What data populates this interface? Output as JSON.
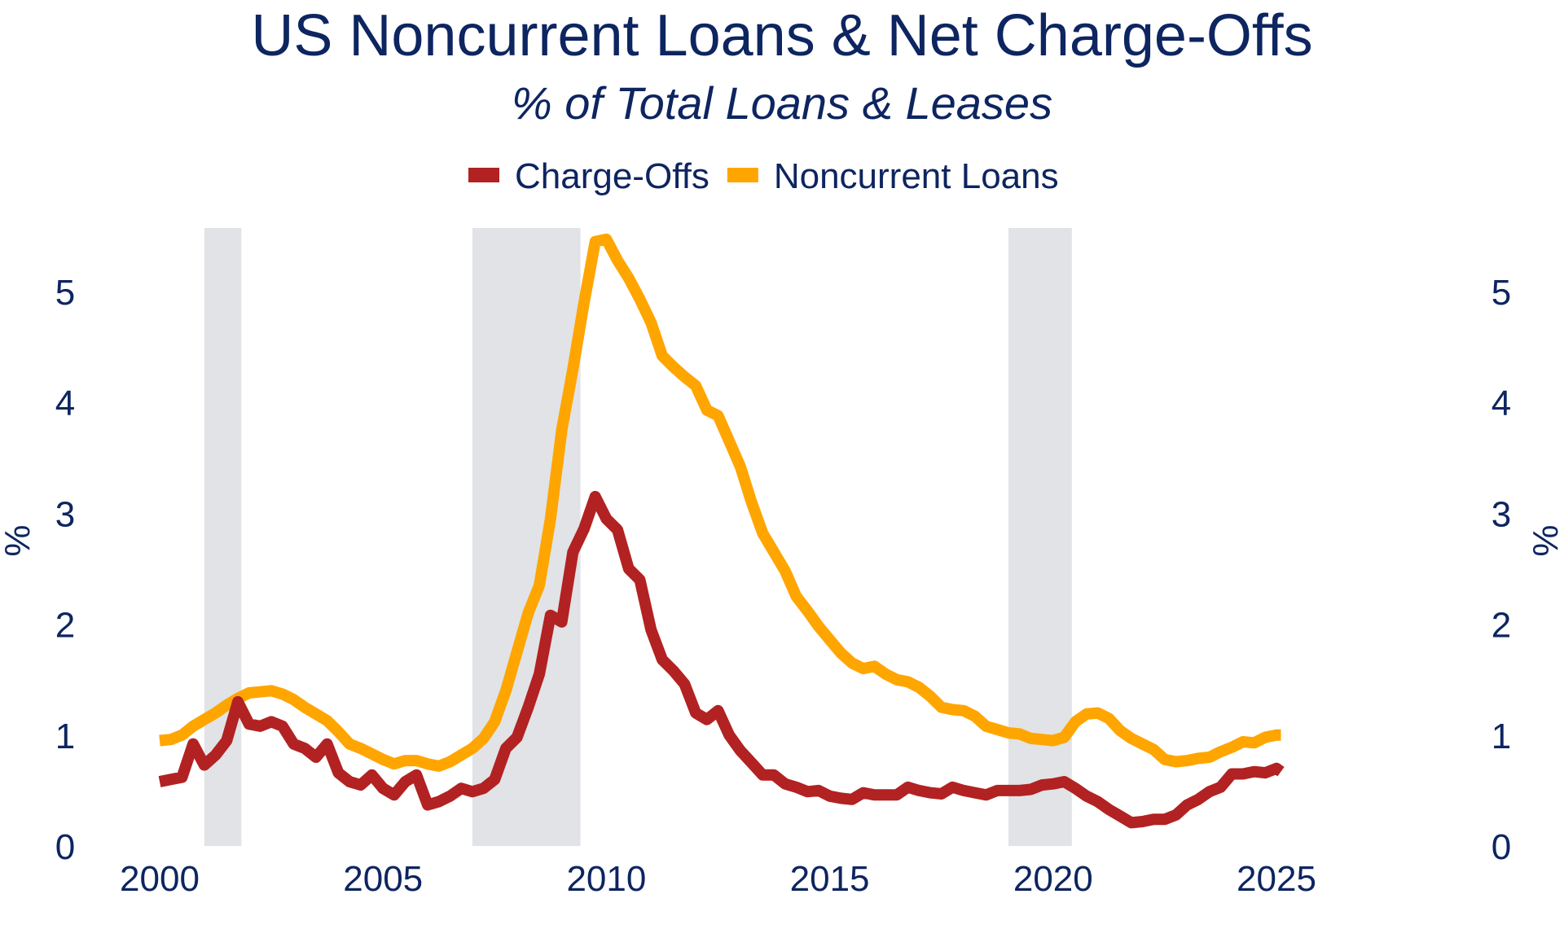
{
  "chart_data": {
    "type": "line",
    "title": "US Noncurrent Loans & Net Charge-Offs",
    "subtitle": "% of Total Loans & Leases",
    "ylabel_left": "%",
    "ylabel_right": "%",
    "xlim": [
      2000,
      2025
    ],
    "ylim": [
      0,
      5.8
    ],
    "x_ticks": [
      "2000",
      "2005",
      "2010",
      "2015",
      "2020",
      "2025"
    ],
    "y_ticks": [
      "0",
      "1",
      "2",
      "3",
      "4",
      "5"
    ],
    "legend_position": "top-center",
    "grid": false,
    "recessions": [
      [
        2001.0,
        2001.83
      ],
      [
        2007.0,
        2009.42
      ],
      [
        2019.0,
        2020.42
      ]
    ],
    "series": [
      {
        "name": "Charge-Offs",
        "color": "#b22222",
        "points": [
          [
            2000.0,
            0.58
          ],
          [
            2000.25,
            0.6
          ],
          [
            2000.5,
            0.62
          ],
          [
            2000.75,
            0.92
          ],
          [
            2001.0,
            0.73
          ],
          [
            2001.25,
            0.82
          ],
          [
            2001.5,
            0.95
          ],
          [
            2001.75,
            1.3
          ],
          [
            2002.0,
            1.1
          ],
          [
            2002.25,
            1.08
          ],
          [
            2002.5,
            1.12
          ],
          [
            2002.75,
            1.08
          ],
          [
            2003.0,
            0.92
          ],
          [
            2003.25,
            0.88
          ],
          [
            2003.5,
            0.8
          ],
          [
            2003.75,
            0.92
          ],
          [
            2004.0,
            0.66
          ],
          [
            2004.25,
            0.58
          ],
          [
            2004.5,
            0.55
          ],
          [
            2004.75,
            0.64
          ],
          [
            2005.0,
            0.52
          ],
          [
            2005.25,
            0.46
          ],
          [
            2005.5,
            0.58
          ],
          [
            2005.75,
            0.64
          ],
          [
            2006.0,
            0.37
          ],
          [
            2006.25,
            0.4
          ],
          [
            2006.5,
            0.45
          ],
          [
            2006.75,
            0.52
          ],
          [
            2007.0,
            0.49
          ],
          [
            2007.25,
            0.52
          ],
          [
            2007.5,
            0.6
          ],
          [
            2007.75,
            0.88
          ],
          [
            2008.0,
            0.98
          ],
          [
            2008.25,
            1.25
          ],
          [
            2008.5,
            1.55
          ],
          [
            2008.75,
            2.08
          ],
          [
            2009.0,
            2.02
          ],
          [
            2009.25,
            2.65
          ],
          [
            2009.5,
            2.86
          ],
          [
            2009.75,
            3.15
          ],
          [
            2010.0,
            2.95
          ],
          [
            2010.25,
            2.85
          ],
          [
            2010.5,
            2.5
          ],
          [
            2010.75,
            2.4
          ],
          [
            2011.0,
            1.95
          ],
          [
            2011.25,
            1.68
          ],
          [
            2011.5,
            1.58
          ],
          [
            2011.75,
            1.46
          ],
          [
            2012.0,
            1.2
          ],
          [
            2012.25,
            1.14
          ],
          [
            2012.5,
            1.22
          ],
          [
            2012.75,
            1.0
          ],
          [
            2013.0,
            0.86
          ],
          [
            2013.25,
            0.75
          ],
          [
            2013.5,
            0.64
          ],
          [
            2013.75,
            0.64
          ],
          [
            2014.0,
            0.56
          ],
          [
            2014.25,
            0.53
          ],
          [
            2014.5,
            0.49
          ],
          [
            2014.75,
            0.5
          ],
          [
            2015.0,
            0.45
          ],
          [
            2015.25,
            0.43
          ],
          [
            2015.5,
            0.42
          ],
          [
            2015.75,
            0.48
          ],
          [
            2016.0,
            0.46
          ],
          [
            2016.25,
            0.46
          ],
          [
            2016.5,
            0.46
          ],
          [
            2016.75,
            0.53
          ],
          [
            2017.0,
            0.5
          ],
          [
            2017.25,
            0.48
          ],
          [
            2017.5,
            0.47
          ],
          [
            2017.75,
            0.53
          ],
          [
            2018.0,
            0.5
          ],
          [
            2018.25,
            0.48
          ],
          [
            2018.5,
            0.46
          ],
          [
            2018.75,
            0.5
          ],
          [
            2019.0,
            0.5
          ],
          [
            2019.25,
            0.5
          ],
          [
            2019.5,
            0.51
          ],
          [
            2019.75,
            0.55
          ],
          [
            2020.0,
            0.56
          ],
          [
            2020.25,
            0.58
          ],
          [
            2020.5,
            0.52
          ],
          [
            2020.75,
            0.45
          ],
          [
            2021.0,
            0.4
          ],
          [
            2021.25,
            0.33
          ],
          [
            2021.5,
            0.27
          ],
          [
            2021.75,
            0.21
          ],
          [
            2022.0,
            0.22
          ],
          [
            2022.25,
            0.24
          ],
          [
            2022.5,
            0.24
          ],
          [
            2022.75,
            0.28
          ],
          [
            2023.0,
            0.37
          ],
          [
            2023.25,
            0.42
          ],
          [
            2023.5,
            0.49
          ],
          [
            2023.75,
            0.53
          ],
          [
            2024.0,
            0.65
          ],
          [
            2024.25,
            0.65
          ],
          [
            2024.5,
            0.67
          ],
          [
            2024.75,
            0.66
          ],
          [
            2025.0,
            0.7
          ],
          [
            2025.1,
            0.67
          ]
        ]
      },
      {
        "name": "Noncurrent Loans",
        "color": "#ffa500",
        "points": [
          [
            2000.0,
            0.95
          ],
          [
            2000.25,
            0.96
          ],
          [
            2000.5,
            1.0
          ],
          [
            2000.75,
            1.08
          ],
          [
            2001.0,
            1.14
          ],
          [
            2001.25,
            1.2
          ],
          [
            2001.5,
            1.27
          ],
          [
            2001.75,
            1.33
          ],
          [
            2002.0,
            1.38
          ],
          [
            2002.25,
            1.39
          ],
          [
            2002.5,
            1.4
          ],
          [
            2002.75,
            1.37
          ],
          [
            2003.0,
            1.32
          ],
          [
            2003.25,
            1.25
          ],
          [
            2003.5,
            1.19
          ],
          [
            2003.75,
            1.13
          ],
          [
            2004.0,
            1.03
          ],
          [
            2004.25,
            0.92
          ],
          [
            2004.5,
            0.88
          ],
          [
            2004.75,
            0.83
          ],
          [
            2005.0,
            0.78
          ],
          [
            2005.25,
            0.74
          ],
          [
            2005.5,
            0.77
          ],
          [
            2005.75,
            0.77
          ],
          [
            2006.0,
            0.74
          ],
          [
            2006.25,
            0.72
          ],
          [
            2006.5,
            0.76
          ],
          [
            2006.75,
            0.82
          ],
          [
            2007.0,
            0.88
          ],
          [
            2007.25,
            0.97
          ],
          [
            2007.5,
            1.12
          ],
          [
            2007.75,
            1.4
          ],
          [
            2008.0,
            1.75
          ],
          [
            2008.25,
            2.1
          ],
          [
            2008.5,
            2.35
          ],
          [
            2008.75,
            2.95
          ],
          [
            2009.0,
            3.75
          ],
          [
            2009.25,
            4.3
          ],
          [
            2009.5,
            4.9
          ],
          [
            2009.75,
            5.45
          ],
          [
            2010.0,
            5.47
          ],
          [
            2010.25,
            5.28
          ],
          [
            2010.5,
            5.12
          ],
          [
            2010.75,
            4.93
          ],
          [
            2011.0,
            4.72
          ],
          [
            2011.25,
            4.42
          ],
          [
            2011.5,
            4.32
          ],
          [
            2011.75,
            4.23
          ],
          [
            2012.0,
            4.15
          ],
          [
            2012.25,
            3.93
          ],
          [
            2012.5,
            3.88
          ],
          [
            2012.75,
            3.65
          ],
          [
            2013.0,
            3.42
          ],
          [
            2013.25,
            3.1
          ],
          [
            2013.5,
            2.82
          ],
          [
            2013.75,
            2.65
          ],
          [
            2014.0,
            2.48
          ],
          [
            2014.25,
            2.25
          ],
          [
            2014.5,
            2.12
          ],
          [
            2014.75,
            1.98
          ],
          [
            2015.0,
            1.86
          ],
          [
            2015.25,
            1.74
          ],
          [
            2015.5,
            1.65
          ],
          [
            2015.75,
            1.6
          ],
          [
            2016.0,
            1.62
          ],
          [
            2016.25,
            1.55
          ],
          [
            2016.5,
            1.5
          ],
          [
            2016.75,
            1.48
          ],
          [
            2017.0,
            1.43
          ],
          [
            2017.25,
            1.35
          ],
          [
            2017.5,
            1.25
          ],
          [
            2017.75,
            1.23
          ],
          [
            2018.0,
            1.22
          ],
          [
            2018.25,
            1.17
          ],
          [
            2018.5,
            1.08
          ],
          [
            2018.75,
            1.05
          ],
          [
            2019.0,
            1.02
          ],
          [
            2019.25,
            1.01
          ],
          [
            2019.5,
            0.97
          ],
          [
            2019.75,
            0.96
          ],
          [
            2020.0,
            0.95
          ],
          [
            2020.25,
            0.98
          ],
          [
            2020.5,
            1.12
          ],
          [
            2020.75,
            1.19
          ],
          [
            2021.0,
            1.2
          ],
          [
            2021.25,
            1.15
          ],
          [
            2021.5,
            1.04
          ],
          [
            2021.75,
            0.97
          ],
          [
            2022.0,
            0.92
          ],
          [
            2022.25,
            0.87
          ],
          [
            2022.5,
            0.78
          ],
          [
            2022.75,
            0.76
          ],
          [
            2023.0,
            0.77
          ],
          [
            2023.25,
            0.79
          ],
          [
            2023.5,
            0.8
          ],
          [
            2023.75,
            0.85
          ],
          [
            2024.0,
            0.89
          ],
          [
            2024.25,
            0.94
          ],
          [
            2024.5,
            0.93
          ],
          [
            2024.75,
            0.98
          ],
          [
            2025.0,
            1.0
          ],
          [
            2025.1,
            1.0
          ]
        ]
      }
    ]
  }
}
